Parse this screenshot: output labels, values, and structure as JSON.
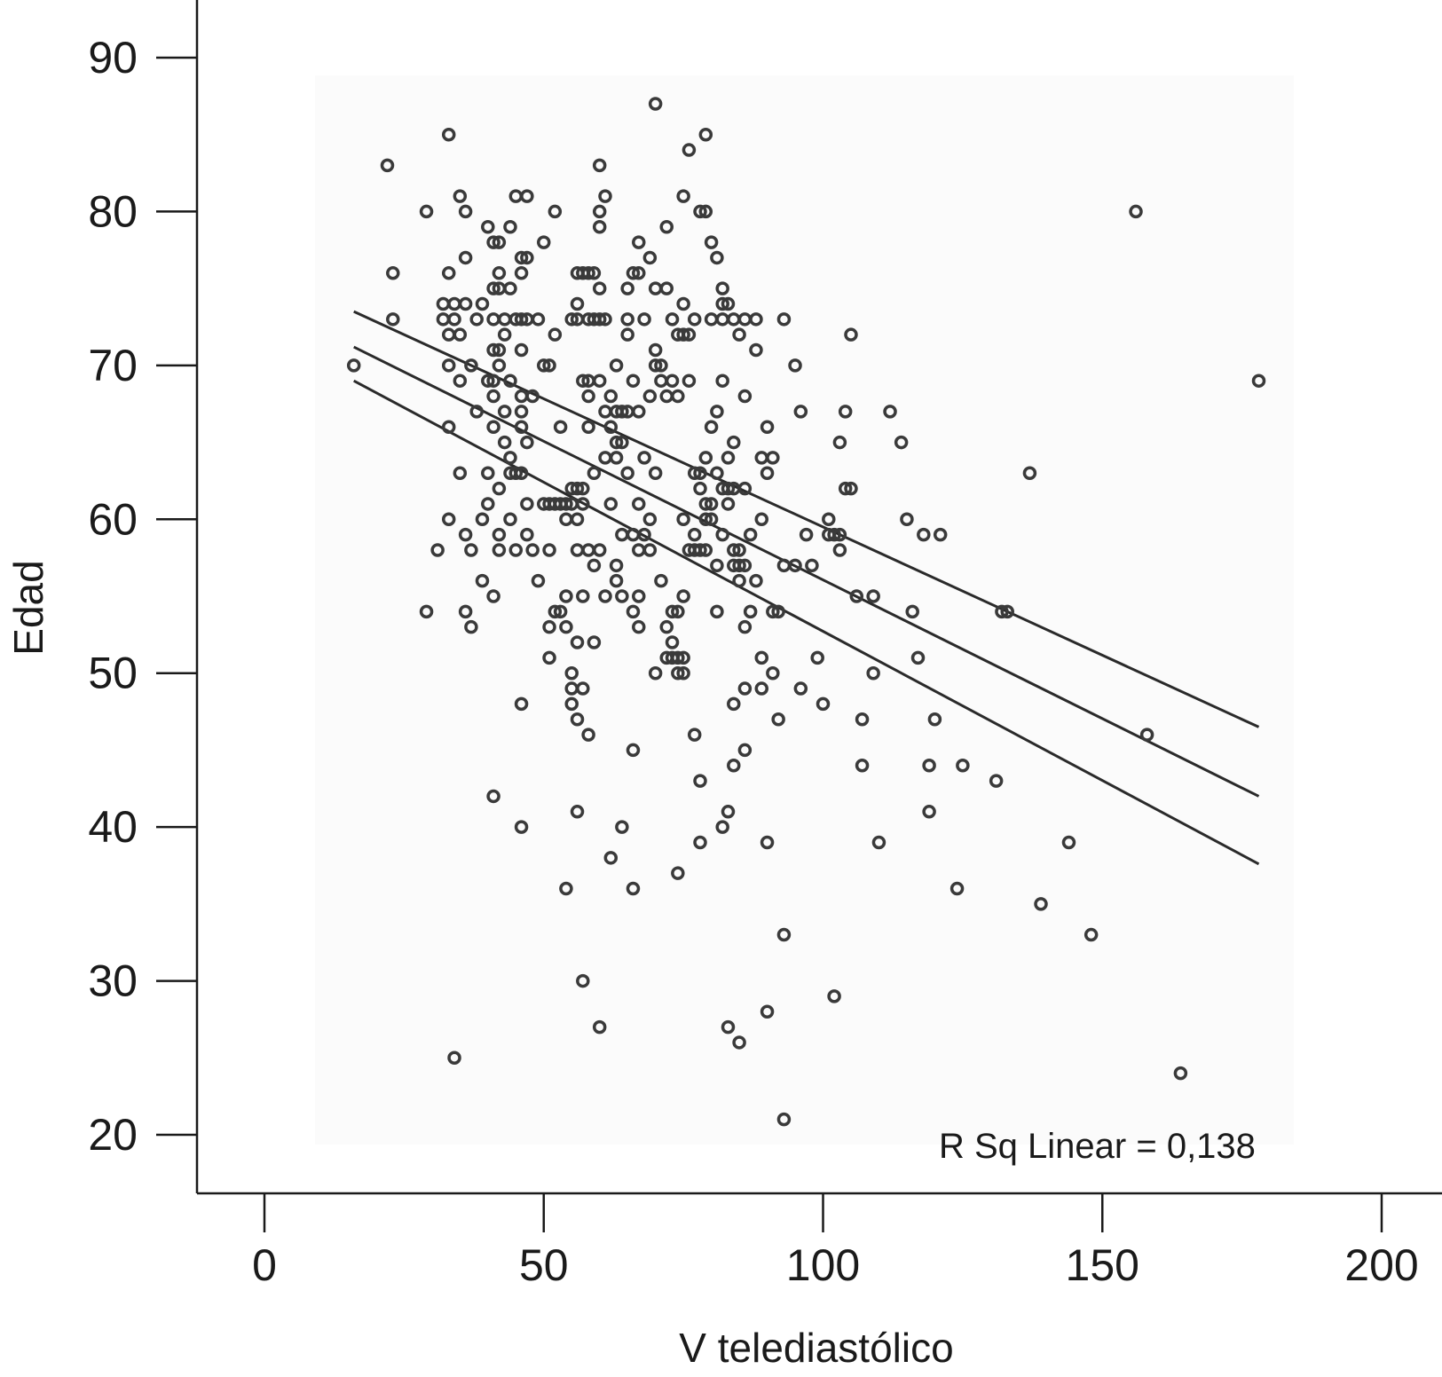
{
  "chart_data": {
    "type": "scatter",
    "xlabel": "V telediastólico",
    "ylabel": "Edad",
    "xlim": [
      -12,
      210
    ],
    "ylim": [
      16,
      94
    ],
    "xticks": [
      0,
      50,
      100,
      150,
      200
    ],
    "yticks": [
      20,
      30,
      40,
      50,
      60,
      70,
      80,
      90
    ],
    "annotation": "R Sq Linear = 0,138",
    "grid": false,
    "colors": {
      "point": "#3a3a3a",
      "line": "#2a2a2a",
      "axis": "#1a1a1a",
      "plot_bg": "#fbfbfb"
    },
    "fit_lines": [
      {
        "role": "upper",
        "x": [
          16,
          178
        ],
        "y": [
          73.5,
          46.5
        ]
      },
      {
        "role": "fit",
        "x": [
          16,
          178
        ],
        "y": [
          71.2,
          42.0
        ]
      },
      {
        "role": "lower",
        "x": [
          16,
          178
        ],
        "y": [
          69.0,
          37.6
        ]
      }
    ],
    "points": [
      [
        16,
        70
      ],
      [
        22,
        83
      ],
      [
        23,
        76
      ],
      [
        23,
        73
      ],
      [
        29,
        80
      ],
      [
        29,
        54
      ],
      [
        31,
        58
      ],
      [
        32,
        74
      ],
      [
        32,
        73
      ],
      [
        33,
        72
      ],
      [
        33,
        85
      ],
      [
        33,
        76
      ],
      [
        33,
        70
      ],
      [
        33,
        66
      ],
      [
        33,
        60
      ],
      [
        34,
        74
      ],
      [
        34,
        73
      ],
      [
        35,
        81
      ],
      [
        35,
        69
      ],
      [
        35,
        63
      ],
      [
        35,
        72
      ],
      [
        34,
        25
      ],
      [
        36,
        80
      ],
      [
        36,
        77
      ],
      [
        36,
        74
      ],
      [
        36,
        54
      ],
      [
        36,
        59
      ],
      [
        37,
        70
      ],
      [
        37,
        58
      ],
      [
        37,
        53
      ],
      [
        38,
        73
      ],
      [
        38,
        67
      ],
      [
        39,
        74
      ],
      [
        39,
        60
      ],
      [
        39,
        56
      ],
      [
        40,
        79
      ],
      [
        40,
        61
      ],
      [
        40,
        63
      ],
      [
        40,
        69
      ],
      [
        41,
        78
      ],
      [
        41,
        75
      ],
      [
        41,
        73
      ],
      [
        41,
        71
      ],
      [
        41,
        69
      ],
      [
        41,
        68
      ],
      [
        41,
        66
      ],
      [
        41,
        55
      ],
      [
        41,
        42
      ],
      [
        42,
        78
      ],
      [
        42,
        76
      ],
      [
        42,
        75
      ],
      [
        42,
        71
      ],
      [
        42,
        70
      ],
      [
        42,
        62
      ],
      [
        42,
        59
      ],
      [
        42,
        58
      ],
      [
        43,
        72
      ],
      [
        43,
        73
      ],
      [
        43,
        67
      ],
      [
        43,
        65
      ],
      [
        44,
        79
      ],
      [
        44,
        75
      ],
      [
        44,
        69
      ],
      [
        44,
        64
      ],
      [
        44,
        63
      ],
      [
        44,
        60
      ],
      [
        45,
        81
      ],
      [
        45,
        73
      ],
      [
        45,
        63
      ],
      [
        45,
        58
      ],
      [
        46,
        77
      ],
      [
        46,
        76
      ],
      [
        46,
        73
      ],
      [
        46,
        71
      ],
      [
        46,
        68
      ],
      [
        46,
        67
      ],
      [
        46,
        66
      ],
      [
        46,
        63
      ],
      [
        46,
        48
      ],
      [
        46,
        40
      ],
      [
        47,
        81
      ],
      [
        47,
        77
      ],
      [
        47,
        73
      ],
      [
        47,
        65
      ],
      [
        47,
        61
      ],
      [
        47,
        59
      ],
      [
        48,
        68
      ],
      [
        48,
        58
      ],
      [
        49,
        73
      ],
      [
        49,
        56
      ],
      [
        50,
        78
      ],
      [
        50,
        70
      ],
      [
        50,
        61
      ],
      [
        51,
        70
      ],
      [
        51,
        61
      ],
      [
        51,
        58
      ],
      [
        51,
        53
      ],
      [
        51,
        51
      ],
      [
        52,
        80
      ],
      [
        52,
        72
      ],
      [
        52,
        61
      ],
      [
        52,
        54
      ],
      [
        53,
        66
      ],
      [
        53,
        61
      ],
      [
        53,
        54
      ],
      [
        54,
        61
      ],
      [
        54,
        60
      ],
      [
        54,
        55
      ],
      [
        54,
        53
      ],
      [
        54,
        36
      ],
      [
        55,
        73
      ],
      [
        55,
        62
      ],
      [
        55,
        50
      ],
      [
        55,
        49
      ],
      [
        55,
        48
      ],
      [
        55,
        61
      ],
      [
        56,
        76
      ],
      [
        56,
        73
      ],
      [
        56,
        74
      ],
      [
        56,
        62
      ],
      [
        56,
        60
      ],
      [
        56,
        58
      ],
      [
        56,
        52
      ],
      [
        56,
        47
      ],
      [
        56,
        41
      ],
      [
        57,
        76
      ],
      [
        57,
        69
      ],
      [
        57,
        62
      ],
      [
        57,
        61
      ],
      [
        57,
        55
      ],
      [
        57,
        49
      ],
      [
        57,
        30
      ],
      [
        58,
        76
      ],
      [
        58,
        73
      ],
      [
        58,
        69
      ],
      [
        58,
        68
      ],
      [
        58,
        66
      ],
      [
        58,
        58
      ],
      [
        58,
        46
      ],
      [
        59,
        76
      ],
      [
        59,
        73
      ],
      [
        59,
        63
      ],
      [
        59,
        57
      ],
      [
        59,
        52
      ],
      [
        60,
        83
      ],
      [
        60,
        80
      ],
      [
        60,
        79
      ],
      [
        60,
        75
      ],
      [
        60,
        73
      ],
      [
        60,
        69
      ],
      [
        60,
        58
      ],
      [
        60,
        27
      ],
      [
        61,
        81
      ],
      [
        61,
        73
      ],
      [
        61,
        67
      ],
      [
        61,
        64
      ],
      [
        61,
        55
      ],
      [
        62,
        68
      ],
      [
        62,
        66
      ],
      [
        62,
        61
      ],
      [
        62,
        38
      ],
      [
        63,
        70
      ],
      [
        63,
        67
      ],
      [
        63,
        65
      ],
      [
        63,
        64
      ],
      [
        63,
        57
      ],
      [
        63,
        56
      ],
      [
        64,
        67
      ],
      [
        64,
        65
      ],
      [
        64,
        59
      ],
      [
        64,
        55
      ],
      [
        64,
        40
      ],
      [
        65,
        75
      ],
      [
        65,
        73
      ],
      [
        65,
        72
      ],
      [
        65,
        67
      ],
      [
        65,
        63
      ],
      [
        66,
        76
      ],
      [
        66,
        69
      ],
      [
        66,
        59
      ],
      [
        66,
        54
      ],
      [
        66,
        45
      ],
      [
        66,
        36
      ],
      [
        67,
        78
      ],
      [
        67,
        76
      ],
      [
        67,
        67
      ],
      [
        67,
        61
      ],
      [
        67,
        58
      ],
      [
        67,
        55
      ],
      [
        67,
        53
      ],
      [
        68,
        73
      ],
      [
        68,
        64
      ],
      [
        68,
        59
      ],
      [
        69,
        77
      ],
      [
        69,
        68
      ],
      [
        69,
        60
      ],
      [
        69,
        58
      ],
      [
        70,
        75
      ],
      [
        70,
        71
      ],
      [
        70,
        70
      ],
      [
        70,
        63
      ],
      [
        70,
        50
      ],
      [
        70,
        87
      ],
      [
        71,
        70
      ],
      [
        71,
        69
      ],
      [
        71,
        56
      ],
      [
        72,
        79
      ],
      [
        72,
        75
      ],
      [
        72,
        68
      ],
      [
        72,
        53
      ],
      [
        72,
        51
      ],
      [
        73,
        73
      ],
      [
        73,
        69
      ],
      [
        73,
        54
      ],
      [
        73,
        52
      ],
      [
        73,
        51
      ],
      [
        74,
        72
      ],
      [
        74,
        68
      ],
      [
        74,
        54
      ],
      [
        74,
        51
      ],
      [
        74,
        50
      ],
      [
        74,
        37
      ],
      [
        75,
        81
      ],
      [
        75,
        74
      ],
      [
        75,
        72
      ],
      [
        75,
        60
      ],
      [
        75,
        55
      ],
      [
        75,
        51
      ],
      [
        75,
        50
      ],
      [
        76,
        84
      ],
      [
        76,
        69
      ],
      [
        76,
        72
      ],
      [
        76,
        58
      ],
      [
        77,
        73
      ],
      [
        77,
        63
      ],
      [
        77,
        59
      ],
      [
        77,
        58
      ],
      [
        77,
        46
      ],
      [
        78,
        80
      ],
      [
        78,
        63
      ],
      [
        78,
        62
      ],
      [
        78,
        58
      ],
      [
        78,
        43
      ],
      [
        78,
        39
      ],
      [
        79,
        85
      ],
      [
        79,
        80
      ],
      [
        79,
        64
      ],
      [
        79,
        61
      ],
      [
        79,
        60
      ],
      [
        79,
        58
      ],
      [
        80,
        78
      ],
      [
        80,
        73
      ],
      [
        80,
        66
      ],
      [
        80,
        61
      ],
      [
        80,
        60
      ],
      [
        81,
        77
      ],
      [
        81,
        67
      ],
      [
        81,
        63
      ],
      [
        81,
        57
      ],
      [
        81,
        54
      ],
      [
        82,
        75
      ],
      [
        82,
        74
      ],
      [
        82,
        73
      ],
      [
        82,
        69
      ],
      [
        82,
        62
      ],
      [
        82,
        59
      ],
      [
        82,
        40
      ],
      [
        83,
        74
      ],
      [
        83,
        64
      ],
      [
        83,
        62
      ],
      [
        83,
        61
      ],
      [
        83,
        41
      ],
      [
        83,
        27
      ],
      [
        84,
        73
      ],
      [
        84,
        65
      ],
      [
        84,
        62
      ],
      [
        84,
        58
      ],
      [
        84,
        57
      ],
      [
        84,
        48
      ],
      [
        84,
        44
      ],
      [
        85,
        72
      ],
      [
        85,
        58
      ],
      [
        85,
        57
      ],
      [
        85,
        56
      ],
      [
        85,
        26
      ],
      [
        86,
        73
      ],
      [
        86,
        68
      ],
      [
        86,
        62
      ],
      [
        86,
        57
      ],
      [
        86,
        53
      ],
      [
        86,
        49
      ],
      [
        86,
        45
      ],
      [
        87,
        54
      ],
      [
        87,
        59
      ],
      [
        88,
        71
      ],
      [
        88,
        73
      ],
      [
        88,
        56
      ],
      [
        89,
        64
      ],
      [
        89,
        60
      ],
      [
        89,
        51
      ],
      [
        89,
        49
      ],
      [
        90,
        66
      ],
      [
        90,
        63
      ],
      [
        90,
        39
      ],
      [
        90,
        28
      ],
      [
        91,
        64
      ],
      [
        91,
        54
      ],
      [
        91,
        50
      ],
      [
        92,
        54
      ],
      [
        92,
        47
      ],
      [
        93,
        73
      ],
      [
        93,
        57
      ],
      [
        93,
        33
      ],
      [
        93,
        21
      ],
      [
        95,
        70
      ],
      [
        95,
        57
      ],
      [
        96,
        67
      ],
      [
        96,
        49
      ],
      [
        97,
        59
      ],
      [
        98,
        57
      ],
      [
        99,
        51
      ],
      [
        100,
        48
      ],
      [
        101,
        60
      ],
      [
        101,
        59
      ],
      [
        102,
        59
      ],
      [
        102,
        29
      ],
      [
        103,
        65
      ],
      [
        103,
        58
      ],
      [
        103,
        59
      ],
      [
        104,
        67
      ],
      [
        104,
        62
      ],
      [
        105,
        62
      ],
      [
        105,
        72
      ],
      [
        106,
        55
      ],
      [
        107,
        47
      ],
      [
        107,
        44
      ],
      [
        109,
        55
      ],
      [
        109,
        50
      ],
      [
        110,
        39
      ],
      [
        112,
        67
      ],
      [
        114,
        65
      ],
      [
        115,
        60
      ],
      [
        116,
        54
      ],
      [
        117,
        51
      ],
      [
        118,
        59
      ],
      [
        119,
        44
      ],
      [
        119,
        41
      ],
      [
        120,
        47
      ],
      [
        121,
        59
      ],
      [
        124,
        36
      ],
      [
        125,
        44
      ],
      [
        131,
        43
      ],
      [
        132,
        54
      ],
      [
        133,
        54
      ],
      [
        137,
        63
      ],
      [
        139,
        35
      ],
      [
        144,
        39
      ],
      [
        148,
        33
      ],
      [
        156,
        80
      ],
      [
        158,
        46
      ],
      [
        164,
        24
      ],
      [
        178,
        69
      ]
    ]
  }
}
